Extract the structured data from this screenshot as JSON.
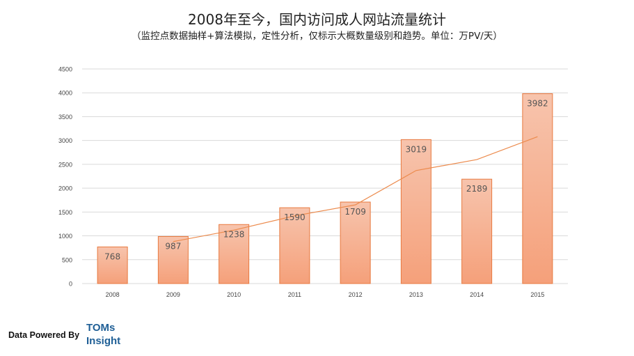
{
  "header": {
    "title": "2008年至今，国内访问成人网站流量统计",
    "subtitle": "（监控点数据抽样+算法模拟，定性分析，仅标示大概数量级别和趋势。单位：万PV/天）"
  },
  "footer": {
    "powered_by": "Data Powered By",
    "brand_line1": "TOMs",
    "brand_line2": "Insight"
  },
  "chart_data": {
    "type": "bar",
    "categories": [
      "2008",
      "2009",
      "2010",
      "2011",
      "2012",
      "2013",
      "2014",
      "2015"
    ],
    "values": [
      768,
      987,
      1238,
      1590,
      1709,
      3019,
      2189,
      3982
    ],
    "trendline": [
      null,
      880,
      1120,
      1420,
      1650,
      2370,
      2600,
      3080
    ],
    "ylim": [
      0,
      4500
    ],
    "yticks": [
      0,
      500,
      1000,
      1500,
      2000,
      2500,
      3000,
      3500,
      4000,
      4500
    ],
    "grid": true,
    "colors": {
      "bar_top": "#f7c4ad",
      "bar_bottom": "#f5a07a",
      "bar_border": "#e8793f",
      "trendline": "#ec8a4c",
      "label": "#555555",
      "grid": "#d9d9d9"
    }
  }
}
